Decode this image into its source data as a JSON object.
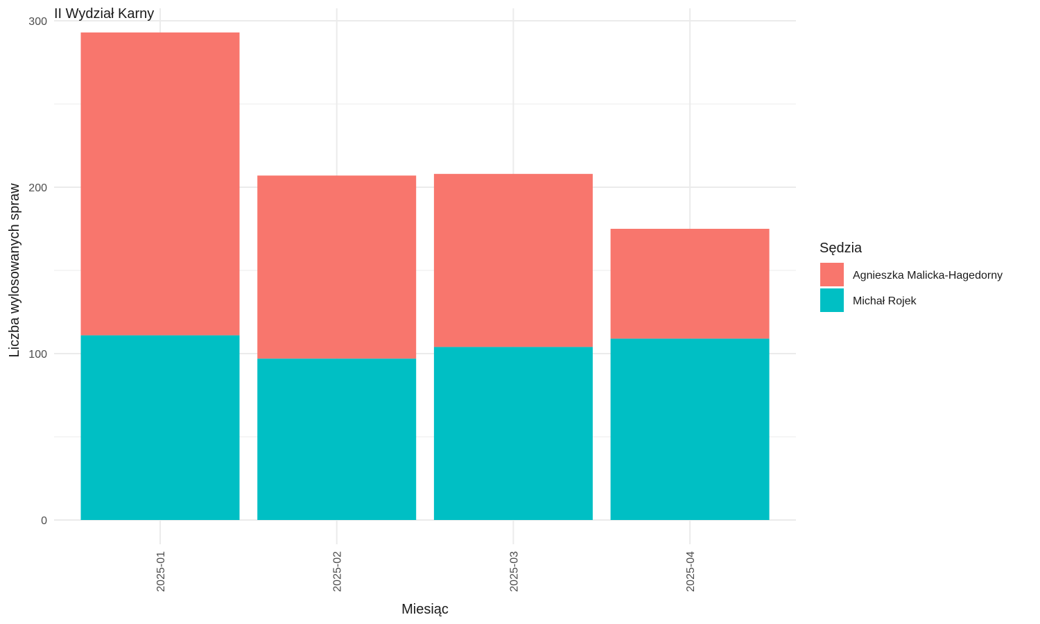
{
  "chart_data": {
    "type": "bar",
    "stacked": true,
    "title": "II Wydział Karny",
    "xlabel": "Miesiąc",
    "ylabel": "Liczba wylosowanych spraw",
    "categories": [
      "2025-01",
      "2025-02",
      "2025-03",
      "2025-04"
    ],
    "ylim": [
      0,
      300
    ],
    "yticks": [
      0,
      100,
      200,
      300
    ],
    "grid": true,
    "legend": {
      "title": "Sędzia",
      "position": "right"
    },
    "series": [
      {
        "name": "Michał Rojek",
        "color": "#00BFC4",
        "values": [
          111,
          97,
          104,
          109
        ]
      },
      {
        "name": "Agnieszka Malicka-Hagedorny",
        "color": "#F8766D",
        "values": [
          182,
          110,
          104,
          66
        ]
      }
    ],
    "legend_order": [
      "Agnieszka Malicka-Hagedorny",
      "Michał Rojek"
    ]
  }
}
